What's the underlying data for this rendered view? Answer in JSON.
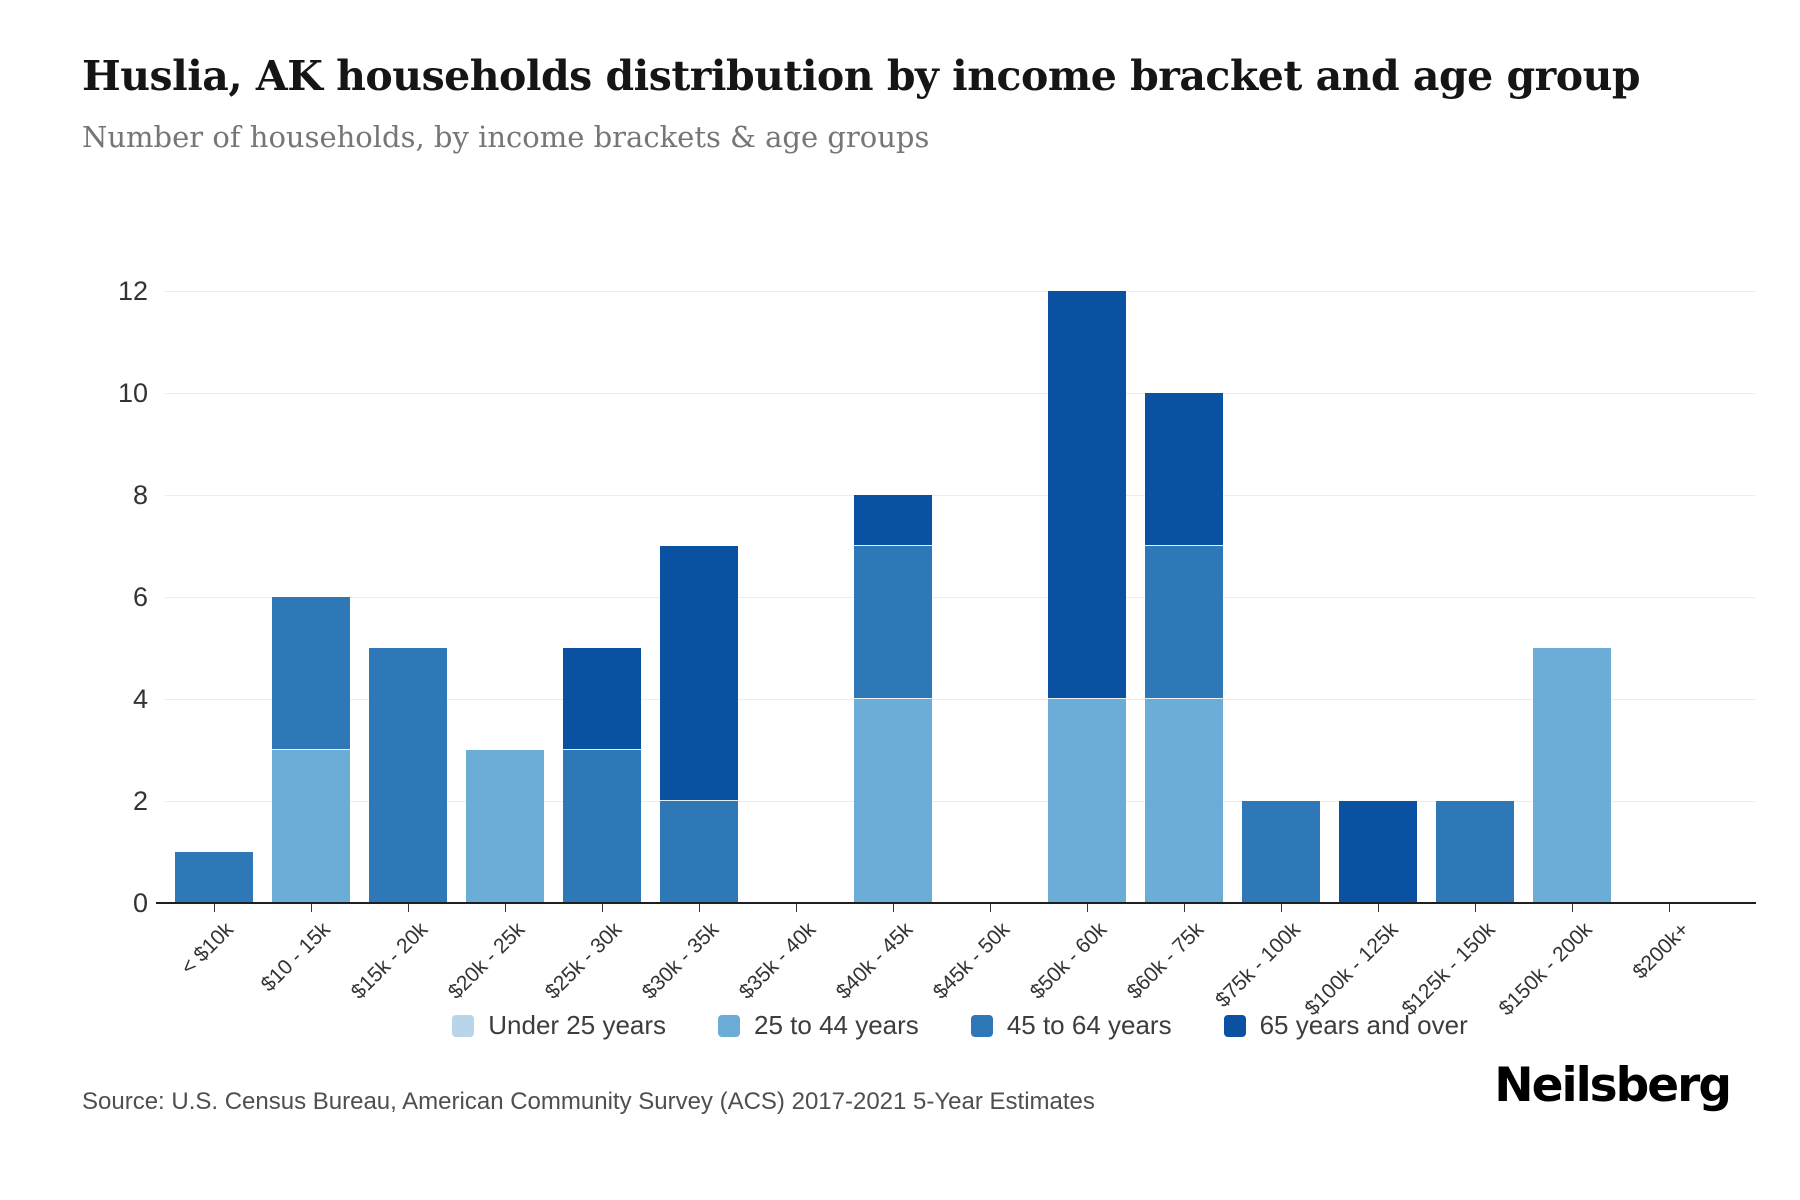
{
  "header": {
    "title": "Huslia, AK households distribution by income bracket and age group",
    "subtitle": "Number of households, by income brackets & age groups"
  },
  "chart_data": {
    "type": "bar",
    "stacked": true,
    "title": "Huslia, AK households distribution by income bracket and age group",
    "subtitle": "Number of households, by income brackets & age groups",
    "xlabel": "",
    "ylabel": "",
    "ylim": [
      0,
      12
    ],
    "yticks": [
      0,
      2,
      4,
      6,
      8,
      10,
      12
    ],
    "grid": true,
    "legend_position": "bottom",
    "categories": [
      "< $10k",
      "$10 - 15k",
      "$15k - 20k",
      "$20k - 25k",
      "$25k - 30k",
      "$30k - 35k",
      "$35k - 40k",
      "$40k - 45k",
      "$45k - 50k",
      "$50k - 60k",
      "$60k - 75k",
      "$75k - 100k",
      "$100k - 125k",
      "$125k - 150k",
      "$150k - 200k",
      "$200k+"
    ],
    "series": [
      {
        "name": "Under 25 years",
        "color": "#b9d5ea",
        "values": [
          0,
          0,
          0,
          0,
          0,
          0,
          0,
          0,
          0,
          0,
          0,
          0,
          0,
          0,
          0,
          0
        ]
      },
      {
        "name": "25 to 44 years",
        "color": "#6badd6",
        "values": [
          0,
          3,
          0,
          3,
          0,
          0,
          0,
          4,
          0,
          4,
          4,
          0,
          0,
          0,
          5,
          0
        ]
      },
      {
        "name": "45 to 64 years",
        "color": "#2f78b8",
        "values": [
          1,
          3,
          5,
          0,
          3,
          2,
          0,
          3,
          0,
          0,
          3,
          2,
          0,
          2,
          0,
          0
        ]
      },
      {
        "name": "65 years and over",
        "color": "#0b51a1",
        "values": [
          0,
          0,
          0,
          0,
          2,
          5,
          0,
          1,
          0,
          8,
          3,
          0,
          2,
          0,
          0,
          0
        ]
      }
    ]
  },
  "footer": {
    "source": "Source: U.S. Census Bureau, American Community Survey (ACS) 2017-2021 5-Year Estimates",
    "brand": "Neilsberg"
  }
}
